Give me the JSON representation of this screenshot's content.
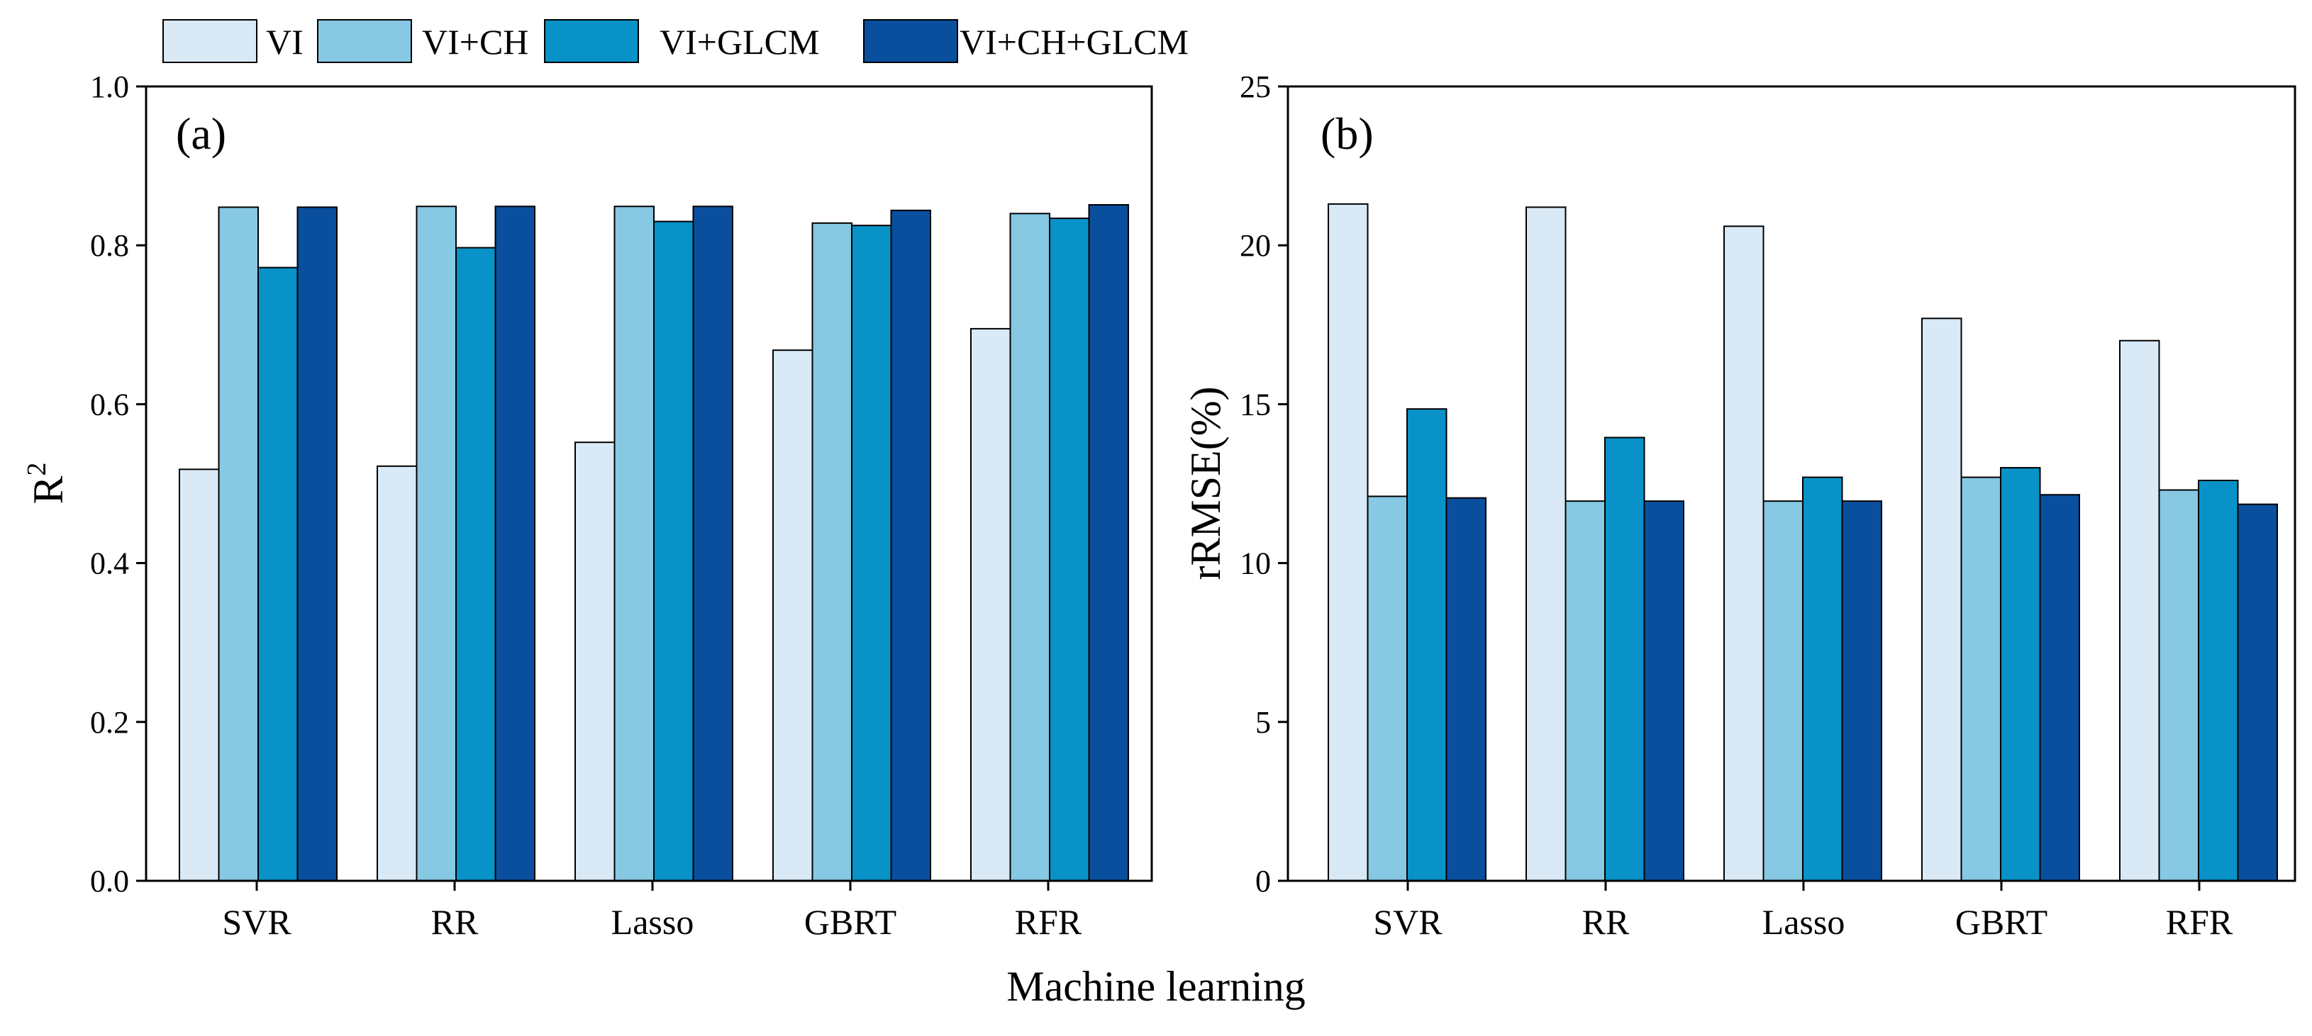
{
  "figure": {
    "legend": [
      {
        "label": "VI",
        "color": "#dae9f6"
      },
      {
        "label": "VI+CH",
        "color": "#87c8e3"
      },
      {
        "label": "VI+GLCM",
        "color": "#0892c8"
      },
      {
        "label": "VI+CH+GLCM",
        "color": "#0a4f9e"
      }
    ],
    "shared_xlabel": "Machine learning"
  },
  "chart_data": [
    {
      "type": "bar",
      "panel_label": "(a)",
      "title": "",
      "xlabel": "Machine learning",
      "ylabel": "R",
      "ylabel_superscript": "2",
      "ylim": [
        0,
        1.0
      ],
      "yticks": [
        "0.0",
        "0.2",
        "0.4",
        "0.6",
        "0.8",
        "1.0"
      ],
      "categories": [
        "SVR",
        "RR",
        "Lasso",
        "GBRT",
        "RFR"
      ],
      "series": [
        {
          "name": "VI",
          "values": [
            0.518,
            0.522,
            0.552,
            0.668,
            0.695
          ]
        },
        {
          "name": "VI+CH",
          "values": [
            0.848,
            0.849,
            0.849,
            0.828,
            0.84
          ]
        },
        {
          "name": "VI+GLCM",
          "values": [
            0.772,
            0.797,
            0.83,
            0.825,
            0.834
          ]
        },
        {
          "name": "VI+CH+GLCM",
          "values": [
            0.848,
            0.849,
            0.849,
            0.844,
            0.851
          ]
        }
      ]
    },
    {
      "type": "bar",
      "panel_label": "(b)",
      "title": "",
      "xlabel": "Machine learning",
      "ylabel": "rRMSE(%)",
      "ylabel_superscript": "",
      "ylim": [
        0,
        25
      ],
      "yticks": [
        "0",
        "5",
        "10",
        "15",
        "20",
        "25"
      ],
      "categories": [
        "SVR",
        "RR",
        "Lasso",
        "GBRT",
        "RFR"
      ],
      "series": [
        {
          "name": "VI",
          "values": [
            21.3,
            21.2,
            20.6,
            17.7,
            17.0
          ]
        },
        {
          "name": "VI+CH",
          "values": [
            12.1,
            11.95,
            11.95,
            12.7,
            12.3
          ]
        },
        {
          "name": "VI+GLCM",
          "values": [
            14.85,
            13.95,
            12.7,
            13.0,
            12.6
          ]
        },
        {
          "name": "VI+CH+GLCM",
          "values": [
            12.05,
            11.95,
            11.95,
            12.15,
            11.85
          ]
        }
      ]
    }
  ]
}
